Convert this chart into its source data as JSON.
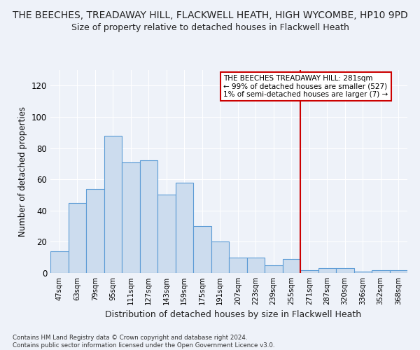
{
  "title": "THE BEECHES, TREADAWAY HILL, FLACKWELL HEATH, HIGH WYCOMBE, HP10 9PD",
  "subtitle": "Size of property relative to detached houses in Flackwell Heath",
  "xlabel": "Distribution of detached houses by size in Flackwell Heath",
  "ylabel": "Number of detached properties",
  "bar_labels": [
    "47sqm",
    "63sqm",
    "79sqm",
    "95sqm",
    "111sqm",
    "127sqm",
    "143sqm",
    "159sqm",
    "175sqm",
    "191sqm",
    "207sqm",
    "223sqm",
    "239sqm",
    "255sqm",
    "271sqm",
    "287sqm",
    "320sqm",
    "336sqm",
    "352sqm",
    "368sqm"
  ],
  "bar_values": [
    14,
    45,
    54,
    88,
    71,
    72,
    50,
    58,
    30,
    20,
    10,
    10,
    5,
    9,
    2,
    3,
    3,
    1,
    2,
    2
  ],
  "bar_color": "#ccdcee",
  "bar_edge_color": "#5b9bd5",
  "ylim": [
    0,
    130
  ],
  "yticks": [
    0,
    20,
    40,
    60,
    80,
    100,
    120
  ],
  "property_line_index": 14,
  "annotation_text": "THE BEECHES TREADAWAY HILL: 281sqm\n← 99% of detached houses are smaller (527)\n1% of semi-detached houses are larger (7) →",
  "annotation_box_color": "#ffffff",
  "annotation_box_edge_color": "#cc0000",
  "footer_text": "Contains HM Land Registry data © Crown copyright and database right 2024.\nContains public sector information licensed under the Open Government Licence v3.0.",
  "background_color": "#eef2f9",
  "grid_color": "#ffffff",
  "title_fontsize": 10,
  "subtitle_fontsize": 9,
  "ylabel_fontsize": 8.5,
  "xlabel_fontsize": 9
}
